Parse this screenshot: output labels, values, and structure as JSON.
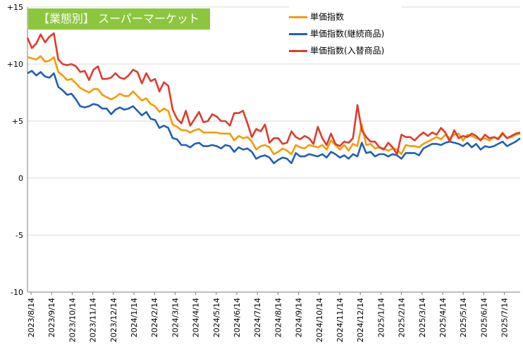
{
  "chart_data": {
    "type": "line",
    "title": "【業態別】 スーパーマーケット",
    "ylim": [
      -10,
      15
    ],
    "yticks": [
      -10,
      -5,
      0,
      5,
      10,
      15
    ],
    "ytick_labels": [
      "-10",
      "-5",
      "0",
      "+5",
      "+10",
      "+15"
    ],
    "xtick_labels": [
      "2023/8/14",
      "2023/9/14",
      "2023/10/14",
      "2023/11/14",
      "2023/12/14",
      "2024/1/14",
      "2024/2/14",
      "2024/3/14",
      "2024/4/14",
      "2024/5/14",
      "2024/6/14",
      "2024/7/14",
      "2024/8/14",
      "2024/9/14",
      "2024/10/14",
      "2024/11/14",
      "2024/12/14",
      "2025/1/14",
      "2025/2/14",
      "2025/3/14",
      "2025/4/14",
      "2025/5/14",
      "2025/6/14",
      "2025/7/14"
    ],
    "grid": true,
    "legend_position": "top-right",
    "series": [
      {
        "name": "単価指数",
        "color": "#f59b00",
        "values": [
          10.6,
          10.5,
          10.4,
          10.7,
          10.2,
          10.3,
          10.6,
          9.3,
          9.0,
          8.6,
          8.7,
          8.3,
          7.9,
          7.7,
          7.5,
          7.8,
          7.8,
          7.3,
          7.1,
          6.9,
          7.1,
          7.4,
          7.2,
          7.2,
          7.6,
          7.2,
          6.8,
          7.0,
          6.5,
          6.3,
          5.8,
          6.1,
          5.9,
          4.7,
          4.5,
          4.2,
          4.2,
          4.0,
          4.2,
          4.3,
          4.0,
          4.0,
          4.0,
          4.0,
          3.9,
          3.9,
          3.9,
          3.3,
          3.7,
          3.5,
          3.6,
          3.2,
          2.5,
          2.8,
          2.9,
          2.7,
          2.1,
          2.3,
          2.6,
          2.4,
          2.1,
          2.9,
          2.7,
          2.6,
          2.9,
          2.8,
          2.7,
          2.9,
          2.5,
          3.3,
          2.9,
          2.5,
          2.9,
          2.4,
          3.0,
          2.8,
          4.7,
          2.9,
          3.0,
          2.6,
          2.7,
          2.6,
          2.4,
          2.6,
          2.5,
          2.1,
          2.9,
          2.8,
          2.8,
          2.7,
          3.0,
          3.2,
          3.4,
          3.6,
          3.4,
          3.8,
          3.5,
          3.8,
          3.9,
          3.3,
          3.8,
          3.7,
          3.5,
          3.4,
          3.5,
          3.3,
          3.6,
          3.5,
          4.0,
          3.5,
          3.6,
          3.8,
          3.9
        ]
      },
      {
        "name": "単価指数(継続商品)",
        "color": "#1f5fb8",
        "values": [
          9.2,
          9.4,
          9.0,
          9.3,
          8.9,
          8.8,
          9.2,
          8.0,
          7.7,
          7.3,
          7.4,
          6.9,
          6.3,
          6.2,
          6.3,
          6.5,
          6.4,
          6.1,
          6.1,
          5.6,
          6.0,
          6.2,
          6.0,
          6.1,
          6.3,
          5.9,
          5.5,
          5.8,
          5.2,
          5.1,
          4.4,
          4.6,
          4.4,
          3.5,
          3.4,
          2.9,
          2.9,
          2.7,
          3.0,
          3.1,
          2.8,
          2.8,
          2.9,
          2.8,
          2.6,
          2.9,
          2.8,
          2.3,
          2.7,
          2.5,
          2.6,
          2.3,
          1.7,
          1.9,
          2.0,
          1.8,
          1.3,
          1.6,
          1.8,
          1.7,
          1.3,
          2.2,
          1.9,
          1.9,
          2.1,
          2.0,
          1.9,
          2.1,
          1.8,
          2.3,
          2.1,
          1.8,
          2.0,
          1.7,
          2.1,
          1.9,
          3.1,
          2.2,
          2.3,
          1.9,
          2.1,
          2.1,
          1.9,
          2.1,
          2.0,
          1.7,
          2.2,
          2.2,
          2.2,
          2.0,
          2.6,
          2.8,
          3.0,
          3.0,
          2.9,
          3.1,
          3.2,
          3.1,
          3.0,
          2.8,
          3.1,
          2.7,
          3.0,
          2.5,
          2.8,
          2.7,
          2.8,
          3.0,
          3.2,
          2.8,
          3.0,
          3.2,
          3.5
        ]
      },
      {
        "name": "単価指数(入替商品)",
        "color": "#e03a2e",
        "values": [
          12.3,
          11.4,
          11.8,
          12.6,
          11.9,
          12.4,
          12.7,
          10.4,
          10.0,
          9.9,
          10.0,
          9.8,
          9.3,
          9.4,
          8.6,
          9.5,
          9.8,
          8.7,
          8.7,
          8.8,
          9.2,
          8.8,
          8.7,
          9.0,
          9.5,
          9.3,
          8.3,
          9.2,
          8.5,
          8.7,
          7.6,
          8.4,
          8.1,
          6.0,
          5.2,
          4.8,
          5.9,
          4.6,
          5.2,
          5.8,
          4.9,
          5.0,
          5.6,
          5.4,
          5.0,
          5.0,
          4.6,
          5.7,
          5.7,
          5.9,
          4.8,
          3.6,
          4.3,
          4.1,
          4.7,
          3.1,
          3.5,
          3.5,
          3.0,
          3.1,
          4.1,
          3.6,
          3.4,
          3.7,
          3.5,
          3.0,
          4.5,
          3.5,
          2.9,
          3.9,
          3.0,
          2.8,
          3.2,
          3.1,
          3.5,
          6.4,
          4.2,
          3.6,
          3.2,
          3.2,
          2.7,
          2.5,
          3.1,
          2.7,
          2.1,
          3.8,
          3.6,
          3.6,
          3.3,
          3.7,
          4.0,
          3.7,
          4.0,
          3.8,
          4.4,
          4.0,
          3.2,
          4.2,
          3.5,
          3.7,
          3.6,
          3.9,
          3.7,
          3.3,
          3.8,
          3.5,
          3.6,
          3.4,
          3.9,
          3.5,
          3.7,
          3.9,
          4.0
        ]
      }
    ]
  }
}
